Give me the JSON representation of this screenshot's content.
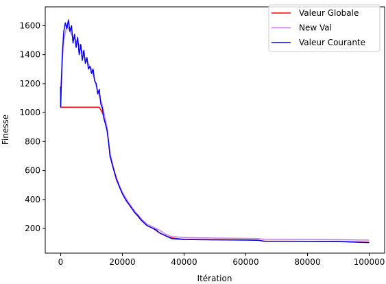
{
  "chart_data": {
    "type": "line",
    "title": "",
    "xlabel": "Itération",
    "ylabel": "Finesse",
    "xlim": [
      -5000,
      105000
    ],
    "ylim": [
      30,
      1730
    ],
    "xticks": [
      0,
      20000,
      40000,
      60000,
      80000,
      100000
    ],
    "yticks": [
      200,
      400,
      600,
      800,
      1000,
      1200,
      1400,
      1600
    ],
    "grid": false,
    "legend_position": "top-right",
    "series": [
      {
        "name": "Valeur Globale",
        "color": "#ff0000",
        "points": [
          [
            0,
            1180
          ],
          [
            0,
            1037
          ],
          [
            12500,
            1037
          ],
          [
            13500,
            1000
          ],
          [
            15000,
            900
          ],
          [
            16000,
            700
          ],
          [
            17000,
            620
          ],
          [
            18000,
            540
          ],
          [
            20000,
            440
          ],
          [
            22000,
            370
          ],
          [
            24000,
            310
          ],
          [
            26000,
            260
          ],
          [
            28000,
            220
          ],
          [
            30000,
            200
          ],
          [
            32000,
            170
          ],
          [
            34000,
            150
          ],
          [
            36000,
            135
          ],
          [
            40000,
            125
          ],
          [
            50000,
            123
          ],
          [
            60000,
            121
          ],
          [
            64000,
            120
          ],
          [
            66000,
            113
          ],
          [
            80000,
            112
          ],
          [
            90000,
            111
          ],
          [
            100000,
            105
          ]
        ]
      },
      {
        "name": "New Val",
        "color": "#bf80ee",
        "points": [
          [
            0,
            1180
          ],
          [
            1000,
            1500
          ],
          [
            2000,
            1600
          ],
          [
            4000,
            1520
          ],
          [
            6000,
            1470
          ],
          [
            8000,
            1370
          ],
          [
            10000,
            1300
          ],
          [
            12000,
            1150
          ],
          [
            13500,
            1050
          ],
          [
            15000,
            900
          ],
          [
            16000,
            720
          ],
          [
            17000,
            630
          ],
          [
            18000,
            550
          ],
          [
            20000,
            450
          ],
          [
            22000,
            380
          ],
          [
            24000,
            320
          ],
          [
            26000,
            270
          ],
          [
            28000,
            230
          ],
          [
            30000,
            210
          ],
          [
            32000,
            190
          ],
          [
            34000,
            160
          ],
          [
            36000,
            145
          ],
          [
            40000,
            138
          ],
          [
            50000,
            134
          ],
          [
            60000,
            132
          ],
          [
            64000,
            131
          ],
          [
            66000,
            125
          ],
          [
            80000,
            124
          ],
          [
            90000,
            123
          ],
          [
            100000,
            120
          ]
        ]
      },
      {
        "name": "Valeur Courante",
        "color": "#0000ee",
        "points": [
          [
            0,
            1180
          ],
          [
            0,
            1040
          ],
          [
            500,
            1400
          ],
          [
            1000,
            1560
          ],
          [
            1500,
            1620
          ],
          [
            2000,
            1580
          ],
          [
            2500,
            1640
          ],
          [
            3000,
            1560
          ],
          [
            3500,
            1600
          ],
          [
            4000,
            1480
          ],
          [
            4500,
            1540
          ],
          [
            5000,
            1450
          ],
          [
            5500,
            1520
          ],
          [
            6000,
            1400
          ],
          [
            6500,
            1470
          ],
          [
            7000,
            1360
          ],
          [
            7500,
            1430
          ],
          [
            8000,
            1340
          ],
          [
            8500,
            1380
          ],
          [
            9000,
            1300
          ],
          [
            9500,
            1320
          ],
          [
            10000,
            1270
          ],
          [
            10500,
            1300
          ],
          [
            11000,
            1220
          ],
          [
            11500,
            1200
          ],
          [
            12000,
            1130
          ],
          [
            12500,
            1160
          ],
          [
            13000,
            1060
          ],
          [
            13500,
            1030
          ],
          [
            14000,
            960
          ],
          [
            14500,
            920
          ],
          [
            15000,
            880
          ],
          [
            15500,
            800
          ],
          [
            16000,
            700
          ],
          [
            16500,
            660
          ],
          [
            17000,
            620
          ],
          [
            18000,
            550
          ],
          [
            19000,
            490
          ],
          [
            20000,
            440
          ],
          [
            21000,
            400
          ],
          [
            22000,
            370
          ],
          [
            23000,
            340
          ],
          [
            24000,
            310
          ],
          [
            25000,
            290
          ],
          [
            26000,
            260
          ],
          [
            27000,
            240
          ],
          [
            28000,
            220
          ],
          [
            29000,
            210
          ],
          [
            30000,
            200
          ],
          [
            31000,
            190
          ],
          [
            32000,
            170
          ],
          [
            33000,
            160
          ],
          [
            34000,
            150
          ],
          [
            35000,
            140
          ],
          [
            36000,
            130
          ],
          [
            40000,
            124
          ],
          [
            50000,
            122
          ],
          [
            60000,
            120
          ],
          [
            64000,
            119
          ],
          [
            66000,
            112
          ],
          [
            80000,
            111
          ],
          [
            90000,
            110
          ],
          [
            100000,
            103
          ]
        ]
      }
    ]
  }
}
